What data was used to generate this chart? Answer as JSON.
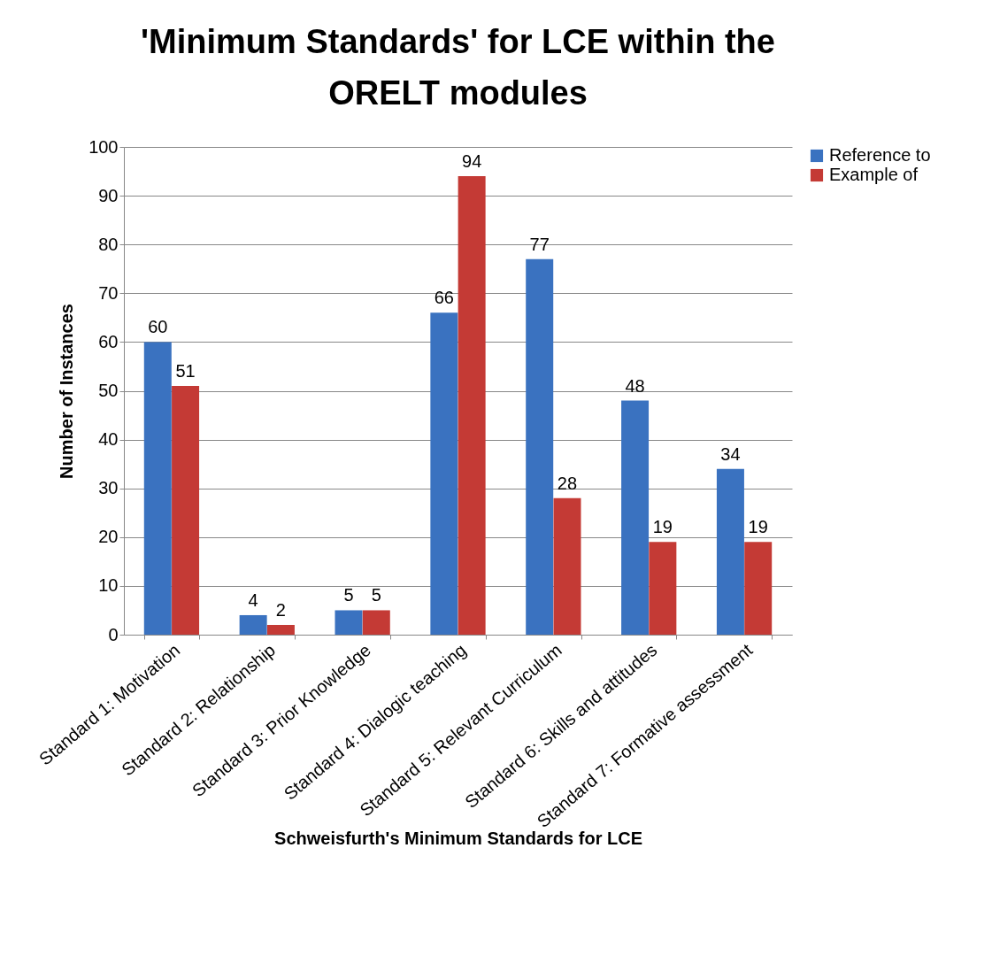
{
  "chart_data": {
    "type": "bar",
    "title": "'Minimum Standards' for LCE within the ORELT modules",
    "xlabel": "Schweisfurth's Minimum Standards for LCE",
    "ylabel": "Number of Instances",
    "categories": [
      "Standard 1: Motivation",
      "Standard 2: Relationship",
      "Standard 3: Prior Knowledge",
      "Standard 4: Dialogic teaching",
      "Standard 5: Relevant Curriculum",
      "Standard 6: Skills and attitudes",
      "Standard 7: Formative assessment"
    ],
    "series": [
      {
        "name": "Reference to",
        "color": "#3a72c0",
        "values": [
          60,
          4,
          5,
          66,
          77,
          48,
          34
        ]
      },
      {
        "name": "Example of",
        "color": "#c43a35",
        "values": [
          51,
          2,
          5,
          94,
          28,
          19,
          19
        ]
      }
    ],
    "ylim": [
      0,
      100
    ],
    "yticks": [
      0,
      10,
      20,
      30,
      40,
      50,
      60,
      70,
      80,
      90,
      100
    ],
    "grid": "y",
    "legend": "right",
    "data_labels": true
  }
}
